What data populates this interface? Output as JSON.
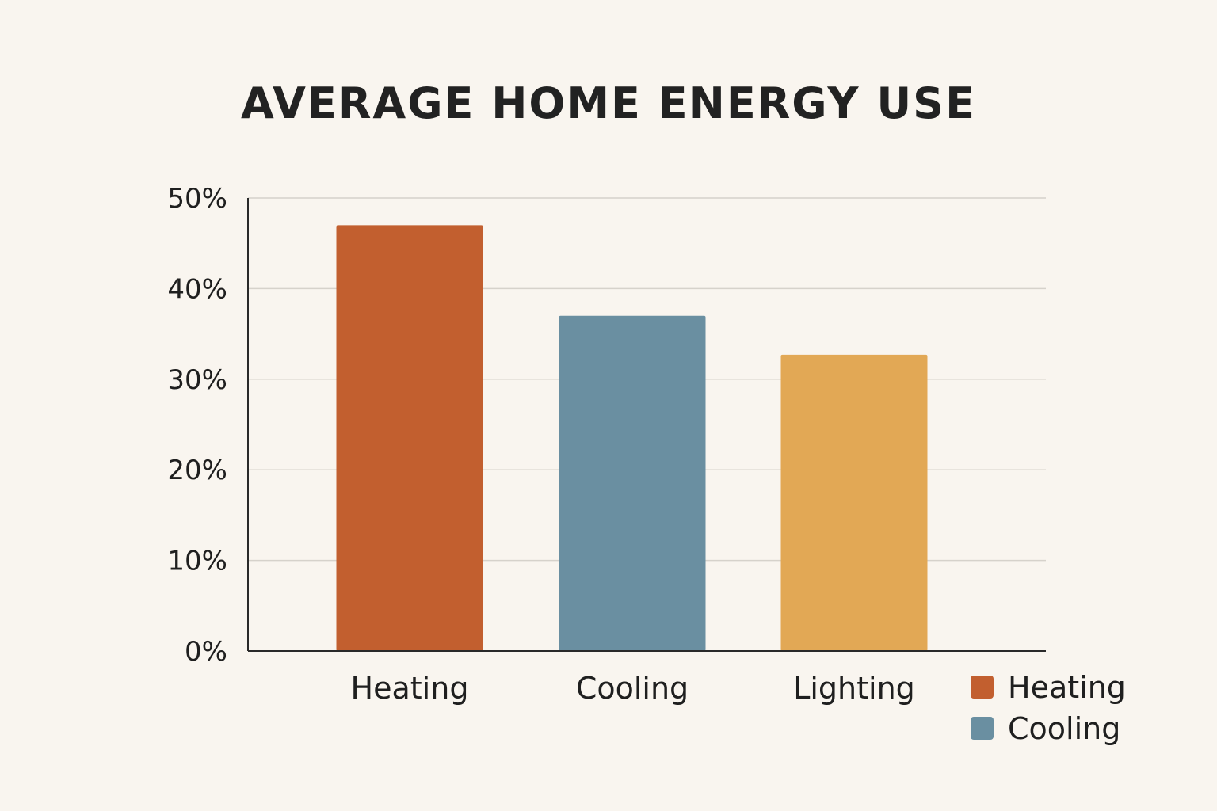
{
  "chart_data": {
    "type": "bar",
    "title": "AVERAGE HOME ENERGY USE",
    "categories": [
      "Heating",
      "Cooling",
      "Lighting"
    ],
    "values": [
      47,
      37,
      32.7
    ],
    "colors": [
      "#c25f2f",
      "#6a8fa1",
      "#e2a855"
    ],
    "ylim": [
      0,
      50
    ],
    "yticks": [
      0,
      10,
      20,
      30,
      40,
      50
    ],
    "ytick_labels": [
      "0%",
      "10%",
      "20%",
      "30%",
      "40%",
      "50%"
    ],
    "grid": true,
    "legend": {
      "placement": "bottom-right",
      "entries": [
        {
          "label": "Heating",
          "color": "#c25f2f"
        },
        {
          "label": "Cooling",
          "color": "#6a8fa1"
        }
      ]
    }
  }
}
